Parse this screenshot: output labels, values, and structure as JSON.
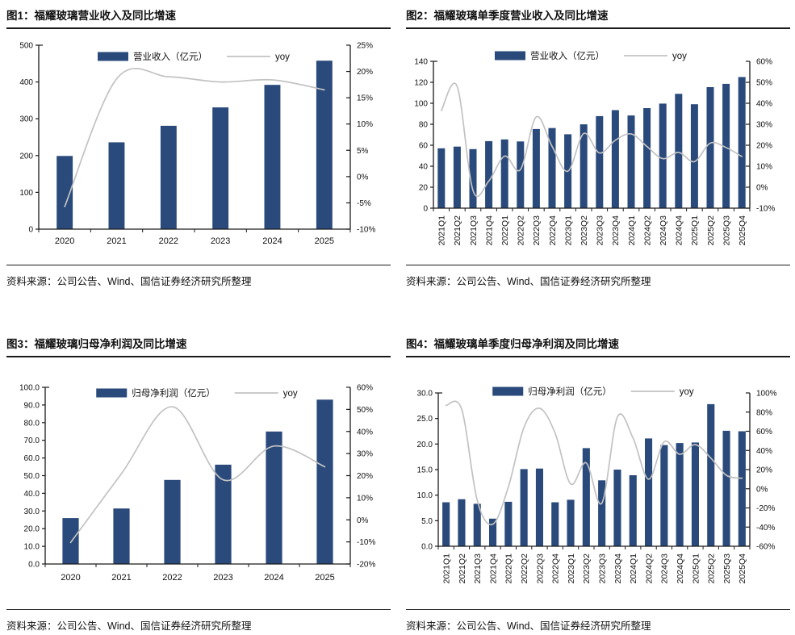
{
  "source_note": "资料来源：公司公告、Wind、国信证券经济研究所整理",
  "colors": {
    "bar": "#2a4a7b",
    "line": "#c2c2c2",
    "axis": "#1a1a1a",
    "text": "#111111"
  },
  "chart_data": [
    {
      "id": "fig1",
      "type": "bar+line",
      "title": "图1：福耀玻璃营业收入及同比增速",
      "categories": [
        "2020",
        "2021",
        "2022",
        "2023",
        "2024",
        "2025"
      ],
      "series": [
        {
          "name": "营业收入（亿元）",
          "type": "bar",
          "axis": "left",
          "values": [
            199,
            236,
            281,
            331,
            392,
            458
          ]
        },
        {
          "name": "yoy",
          "type": "line",
          "axis": "right",
          "values": [
            -5.7,
            18.6,
            19.0,
            18.0,
            18.4,
            16.5
          ]
        }
      ],
      "left_axis": {
        "min": 0,
        "max": 500,
        "step": 100,
        "ticks": [
          "0",
          "100",
          "200",
          "300",
          "400",
          "500"
        ]
      },
      "right_axis": {
        "min": -10,
        "max": 25,
        "step": 5,
        "ticks": [
          "-10%",
          "-5%",
          "0%",
          "5%",
          "10%",
          "15%",
          "20%",
          "25%"
        ]
      },
      "legend_position": "top-center",
      "grid": false
    },
    {
      "id": "fig2",
      "type": "bar+line",
      "title": "图2：福耀玻璃单季度营业收入及同比增速",
      "categories": [
        "2021Q1",
        "2021Q2",
        "2021Q3",
        "2021Q4",
        "2022Q1",
        "2022Q2",
        "2022Q3",
        "2022Q4",
        "2023Q1",
        "2023Q2",
        "2023Q3",
        "2023Q4",
        "2024Q1",
        "2024Q2",
        "2024Q3",
        "2024Q4",
        "2025Q1",
        "2025Q2",
        "2025Q3",
        "2025Q4"
      ],
      "series": [
        {
          "name": "营业收入（亿元）",
          "type": "bar",
          "axis": "left",
          "values": [
            57.1,
            58.7,
            56.3,
            63.9,
            65.5,
            63.6,
            75.5,
            76.4,
            70.5,
            79.9,
            87.8,
            93.5,
            88.4,
            95.4,
            99.7,
            109.0,
            99.1,
            115.4,
            118.5,
            125.0
          ]
        },
        {
          "name": "yoy",
          "type": "line",
          "axis": "right",
          "values": [
            36.5,
            48.1,
            -1.5,
            2.9,
            14.8,
            8.4,
            33.5,
            19.5,
            7.6,
            25.6,
            16.3,
            22.4,
            25.4,
            19.4,
            13.6,
            16.6,
            12.2,
            21.0,
            18.9,
            14.6
          ]
        }
      ],
      "left_axis": {
        "min": 0,
        "max": 140,
        "step": 20,
        "ticks": [
          "0",
          "20",
          "40",
          "60",
          "80",
          "100",
          "120",
          "140"
        ]
      },
      "right_axis": {
        "min": -10,
        "max": 60,
        "step": 10,
        "ticks": [
          "-10%",
          "0%",
          "10%",
          "20%",
          "30%",
          "40%",
          "50%",
          "60%"
        ]
      },
      "legend_position": "top-center",
      "grid": false
    },
    {
      "id": "fig3",
      "type": "bar+line",
      "title": "图3：福耀玻璃归母净利润及同比增速",
      "categories": [
        "2020",
        "2021",
        "2022",
        "2023",
        "2024",
        "2025"
      ],
      "series": [
        {
          "name": "归母净利润（亿元）",
          "type": "bar",
          "axis": "left",
          "values": [
            26.0,
            31.4,
            47.6,
            56.2,
            75.0,
            93.0
          ]
        },
        {
          "name": "yoy",
          "type": "line",
          "axis": "right",
          "values": [
            -10.3,
            20.9,
            51.2,
            18.1,
            33.4,
            24.0
          ]
        }
      ],
      "left_axis": {
        "min": 0,
        "max": 100,
        "step": 10,
        "ticks": [
          "0.0",
          "10.0",
          "20.0",
          "30.0",
          "40.0",
          "50.0",
          "60.0",
          "70.0",
          "80.0",
          "90.0",
          "100.0"
        ]
      },
      "right_axis": {
        "min": -20,
        "max": 60,
        "step": 10,
        "ticks": [
          "-20%",
          "-10%",
          "0%",
          "10%",
          "20%",
          "30%",
          "40%",
          "50%",
          "60%"
        ]
      },
      "legend_position": "top-center",
      "grid": false
    },
    {
      "id": "fig4",
      "type": "bar+line",
      "title": "图4：福耀玻璃单季度归母净利润及同比增速",
      "categories": [
        "2021Q1",
        "2021Q2",
        "2021Q3",
        "2021Q4",
        "2022Q1",
        "2022Q2",
        "2022Q3",
        "2022Q4",
        "2023Q1",
        "2023Q2",
        "2023Q3",
        "2023Q4",
        "2024Q1",
        "2024Q2",
        "2024Q3",
        "2024Q4",
        "2025Q1",
        "2025Q2",
        "2025Q3",
        "2025Q4"
      ],
      "series": [
        {
          "name": "归母净利润（亿元）",
          "type": "bar",
          "axis": "left",
          "values": [
            8.6,
            9.2,
            8.3,
            5.4,
            8.7,
            15.1,
            15.2,
            8.6,
            9.1,
            19.2,
            12.9,
            15.0,
            13.9,
            21.1,
            19.8,
            20.2,
            20.3,
            27.8,
            22.6,
            22.5
          ]
        },
        {
          "name": "yoy",
          "type": "line",
          "axis": "right",
          "values": [
            87,
            83,
            -12,
            -37,
            2,
            64,
            84,
            58,
            5,
            27,
            -15,
            75,
            53,
            10,
            49,
            36,
            46,
            32,
            14,
            11
          ]
        }
      ],
      "left_axis": {
        "min": 0,
        "max": 30,
        "step": 5,
        "ticks": [
          "0.0",
          "5.0",
          "10.0",
          "15.0",
          "20.0",
          "25.0",
          "30.0"
        ]
      },
      "right_axis": {
        "min": -60,
        "max": 100,
        "step": 20,
        "ticks": [
          "-60%",
          "-40%",
          "-20%",
          "0%",
          "20%",
          "40%",
          "60%",
          "80%",
          "100%"
        ]
      },
      "legend_position": "top-center",
      "grid": false
    }
  ]
}
